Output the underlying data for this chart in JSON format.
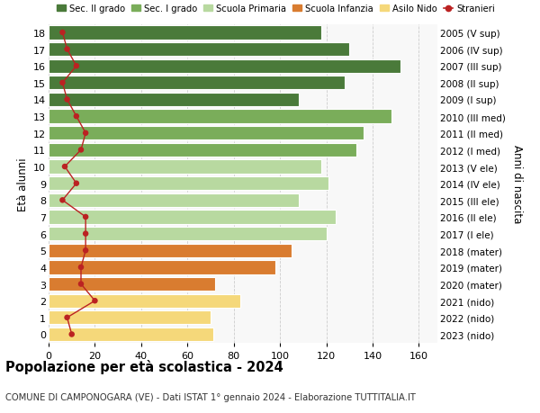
{
  "ages": [
    18,
    17,
    16,
    15,
    14,
    13,
    12,
    11,
    10,
    9,
    8,
    7,
    6,
    5,
    4,
    3,
    2,
    1,
    0
  ],
  "values": [
    118,
    130,
    152,
    128,
    108,
    148,
    136,
    133,
    118,
    121,
    108,
    124,
    120,
    105,
    98,
    72,
    83,
    70,
    71
  ],
  "stranieri": [
    6,
    8,
    12,
    6,
    8,
    12,
    16,
    14,
    7,
    12,
    6,
    16,
    16,
    16,
    14,
    14,
    20,
    8,
    10
  ],
  "right_labels": [
    "2005 (V sup)",
    "2006 (IV sup)",
    "2007 (III sup)",
    "2008 (II sup)",
    "2009 (I sup)",
    "2010 (III med)",
    "2011 (II med)",
    "2012 (I med)",
    "2013 (V ele)",
    "2014 (IV ele)",
    "2015 (III ele)",
    "2016 (II ele)",
    "2017 (I ele)",
    "2018 (mater)",
    "2019 (mater)",
    "2020 (mater)",
    "2021 (nido)",
    "2022 (nido)",
    "2023 (nido)"
  ],
  "bar_colors": [
    "#4a7a3a",
    "#4a7a3a",
    "#4a7a3a",
    "#4a7a3a",
    "#4a7a3a",
    "#7aad5a",
    "#7aad5a",
    "#7aad5a",
    "#b8d9a0",
    "#b8d9a0",
    "#b8d9a0",
    "#b8d9a0",
    "#b8d9a0",
    "#d97c30",
    "#d97c30",
    "#d97c30",
    "#f5d87a",
    "#f5d87a",
    "#f5d87a"
  ],
  "legend_labels": [
    "Sec. II grado",
    "Sec. I grado",
    "Scuola Primaria",
    "Scuola Infanzia",
    "Asilo Nido",
    "Stranieri"
  ],
  "legend_colors": [
    "#4a7a3a",
    "#7aad5a",
    "#b8d9a0",
    "#d97c30",
    "#f5d87a",
    "#bb2222"
  ],
  "ylabel": "Età alunni",
  "right_ylabel": "Anni di nascita",
  "title": "Popolazione per età scolastica - 2024",
  "subtitle": "COMUNE DI CAMPONOGARA (VE) - Dati ISTAT 1° gennaio 2024 - Elaborazione TUTTITALIA.IT",
  "xlim": [
    0,
    168
  ],
  "xticks": [
    0,
    20,
    40,
    60,
    80,
    100,
    120,
    140,
    160
  ],
  "bg_color": "#ffffff",
  "plot_bg_color": "#f8f8f8",
  "grid_color": "#cccccc",
  "bar_height": 0.82,
  "stranieri_color": "#bb2222"
}
